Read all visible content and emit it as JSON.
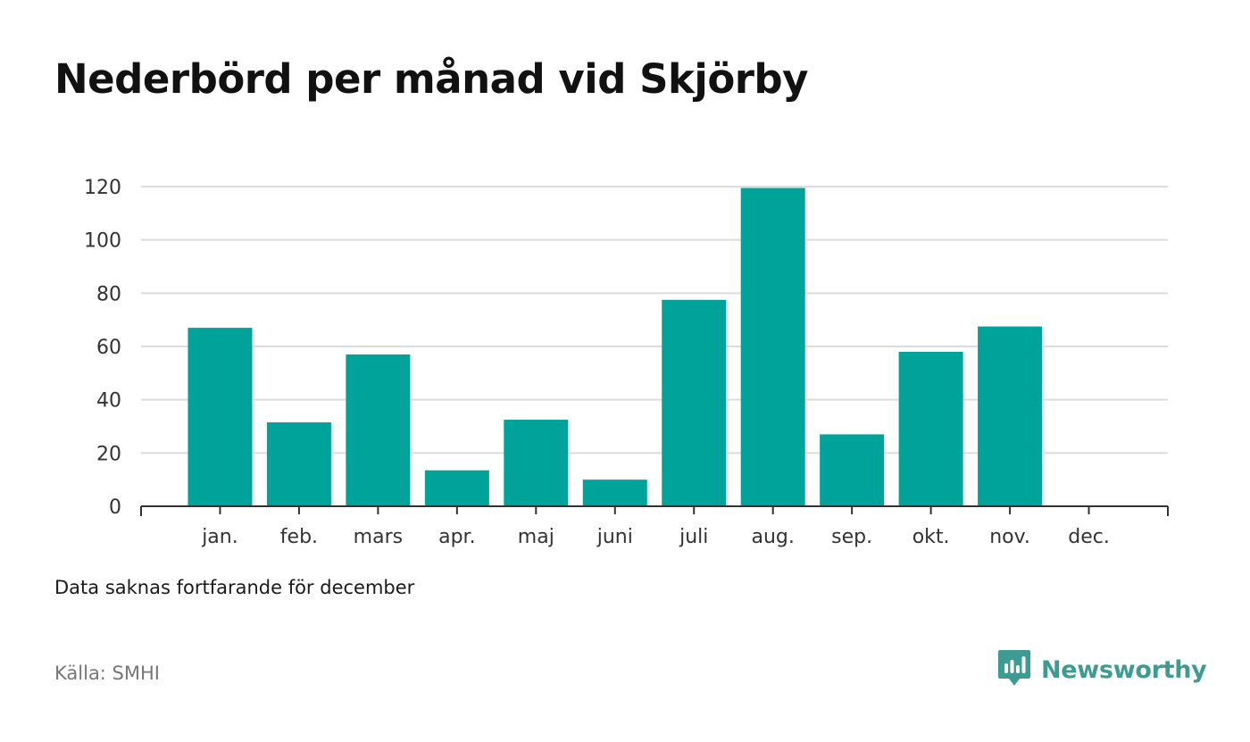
{
  "title": "Nederbörd per månad vid Skjörby",
  "note": "Data saknas fortfarande för december",
  "source": "Källa: SMHI",
  "brand": {
    "name": "Newsworthy",
    "color": "#3e9b91"
  },
  "colors": {
    "bar": "#00a39a",
    "grid": "#dcdcdc",
    "axis": "#333333",
    "tick_text": "#333333"
  },
  "chart_data": {
    "type": "bar",
    "title": "Nederbörd per månad vid Skjörby",
    "xlabel": "",
    "ylabel": "",
    "categories": [
      "jan.",
      "feb.",
      "mars",
      "apr.",
      "maj",
      "juni",
      "juli",
      "aug.",
      "sep.",
      "okt.",
      "nov.",
      "dec."
    ],
    "values": [
      67,
      31.5,
      57,
      13.5,
      32.5,
      10,
      77.5,
      119.5,
      27,
      58,
      67.5,
      null
    ],
    "ylim": [
      0,
      120
    ],
    "yticks": [
      0,
      20,
      40,
      60,
      80,
      100,
      120
    ],
    "grid": true,
    "legend": "none"
  }
}
